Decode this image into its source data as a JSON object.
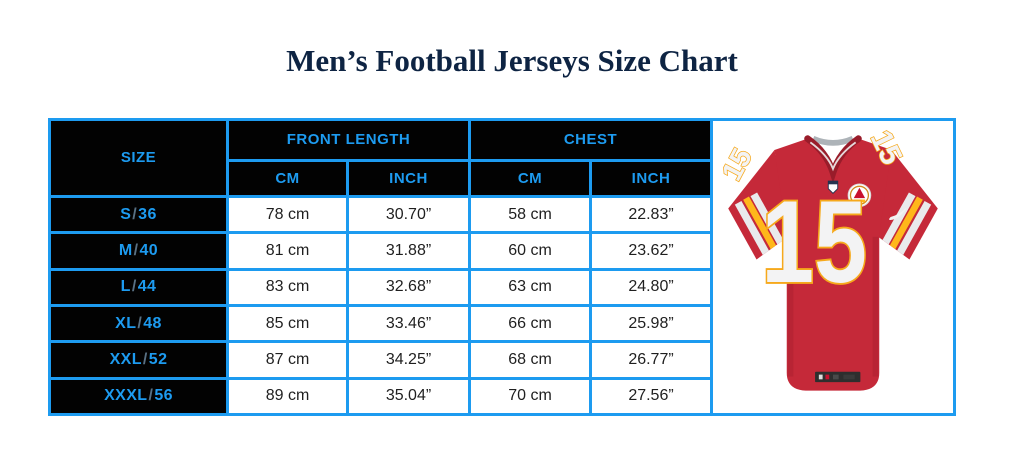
{
  "page": {
    "title": "Men’s Football Jerseys Size Chart"
  },
  "colors": {
    "accent_blue": "#1D9BF0",
    "header_background": "#020202",
    "title_navy": "#0E2443",
    "jersey_red": "#C52939",
    "jersey_gold": "#FFB71B",
    "jersey_number_white": "#F3F3F4"
  },
  "size_chart": {
    "columns": {
      "size": "SIZE",
      "front_length": "FRONT LENGTH",
      "chest": "CHEST",
      "cm": "CM",
      "inch": "INCH"
    },
    "rows": [
      {
        "size": "S/36",
        "front_cm": "78 cm",
        "front_inch": "30.70”",
        "chest_cm": "58 cm",
        "chest_inch": "22.83”"
      },
      {
        "size": "M/40",
        "front_cm": "81 cm",
        "front_inch": "31.88”",
        "chest_cm": "60 cm",
        "chest_inch": "23.62”"
      },
      {
        "size": "L/44",
        "front_cm": "83 cm",
        "front_inch": "32.68”",
        "chest_cm": "63 cm",
        "chest_inch": "24.80”"
      },
      {
        "size": "XL/48",
        "front_cm": "85 cm",
        "front_inch": "33.46”",
        "chest_cm": "66 cm",
        "chest_inch": "25.98”"
      },
      {
        "size": "XXL/52",
        "front_cm": "87 cm",
        "front_inch": "34.25”",
        "chest_cm": "68 cm",
        "chest_inch": "26.77”"
      },
      {
        "size": "XXXL/56",
        "front_cm": "89 cm",
        "front_inch": "35.04”",
        "chest_cm": "70 cm",
        "chest_inch": "27.56”"
      }
    ]
  },
  "jersey": {
    "number": "15"
  }
}
